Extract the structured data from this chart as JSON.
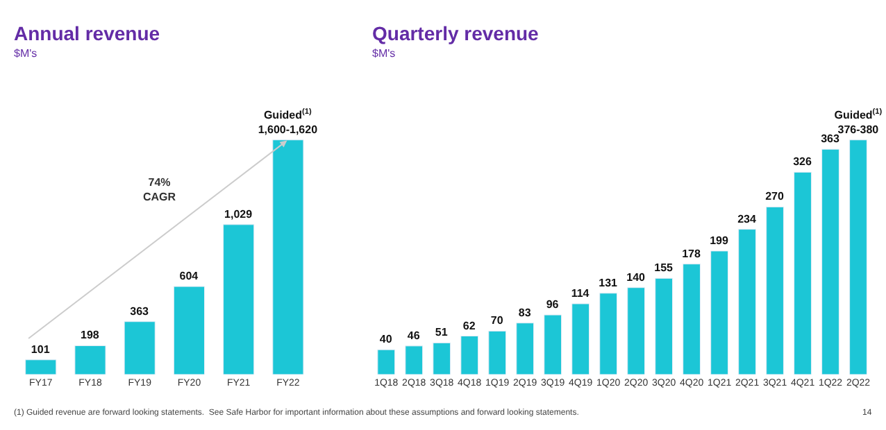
{
  "chart_data": [
    {
      "type": "bar",
      "title": "Annual revenue",
      "subtitle": "$M's",
      "categories": [
        "FY17",
        "FY18",
        "FY19",
        "FY20",
        "FY21",
        "FY22"
      ],
      "values": [
        101,
        198,
        363,
        604,
        1029,
        1610
      ],
      "color": "#1cc6d6",
      "value_labels": [
        "101",
        "198",
        "363",
        "604",
        "1,029",
        "Guided$^{(1)}$\n1,600-1,620"
      ],
      "tick_labels": "x",
      "annotations": [
        "74%\nCAGR",
        "(1) Guided revenue are forward looking statements.  See Safe Harbor for important information about these assumptions and forward looking statements."
      ]
    },
    {
      "type": "bar",
      "title": "Quarterly revenue",
      "subtitle": "$M's",
      "categories": [
        "1Q18",
        "2Q18",
        "3Q18",
        "4Q18",
        "1Q19",
        "2Q19",
        "3Q19",
        "4Q19",
        "1Q20",
        "2Q20",
        "3Q20",
        "4Q20",
        "1Q21",
        "2Q21",
        "3Q21",
        "4Q21",
        "1Q22",
        "2Q22"
      ],
      "values": [
        40,
        46,
        51,
        62,
        70,
        83,
        96,
        114,
        131,
        140,
        155,
        178,
        199,
        234,
        270,
        326,
        363,
        378
      ],
      "color": "#1cc6d6",
      "value_labels": [
        "40",
        "46",
        "51",
        "62",
        "70",
        "83",
        "96",
        "114",
        "131",
        "140",
        "155",
        "178",
        "199",
        "234",
        "270",
        "326",
        "363",
        "Guided$^{(1)}$\n376-380"
      ],
      "tick_labels": "x",
      "annotations": [
        "14"
      ]
    }
  ]
}
